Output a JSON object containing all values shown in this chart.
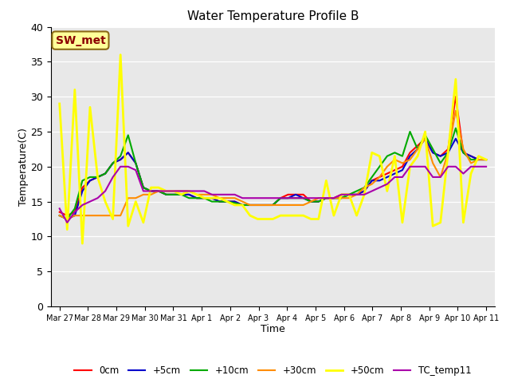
{
  "title": "Water Temperature Profile B",
  "xlabel": "Time",
  "ylabel": "Temperature(C)",
  "ylim": [
    0,
    40
  ],
  "annotation_text": "SW_met",
  "annotation_color": "#8B0000",
  "annotation_bg": "#FFFF99",
  "bg_color": "#E8E8E8",
  "legend_entries": [
    {
      "label": "0cm",
      "color": "#FF0000",
      "lw": 1.5
    },
    {
      "label": "+5cm",
      "color": "#0000CC",
      "lw": 1.5
    },
    {
      "label": "+10cm",
      "color": "#00AA00",
      "lw": 1.5
    },
    {
      "label": "+30cm",
      "color": "#FF8C00",
      "lw": 1.5
    },
    {
      "label": "+50cm",
      "color": "#FFFF00",
      "lw": 2.0
    },
    {
      "label": "TC_temp11",
      "color": "#AA00AA",
      "lw": 1.5
    }
  ],
  "tick_labels": [
    "Mar 27",
    "Mar 28",
    "Mar 29",
    "Mar 30",
    "Mar 31",
    "Apr 1",
    "Apr 2",
    "Apr 3",
    "Apr 4",
    "Apr 5",
    "Apr 6",
    "Apr 7",
    "Apr 8",
    "Apr 9",
    "Apr 10",
    "Apr 11"
  ],
  "series": {
    "0cm": [
      13.5,
      13.0,
      13.5,
      17.0,
      18.0,
      18.5,
      19.0,
      20.5,
      21.0,
      22.0,
      20.5,
      17.0,
      16.5,
      16.5,
      16.0,
      16.0,
      16.0,
      16.0,
      15.5,
      15.5,
      15.5,
      15.0,
      15.0,
      15.0,
      14.5,
      14.5,
      14.5,
      14.5,
      14.5,
      15.5,
      16.0,
      16.0,
      16.0,
      15.0,
      15.0,
      15.5,
      15.5,
      16.0,
      16.0,
      16.0,
      16.5,
      18.0,
      18.5,
      19.0,
      19.5,
      20.0,
      22.0,
      23.0,
      24.0,
      22.0,
      21.5,
      22.5,
      30.0,
      22.0,
      21.5,
      21.0,
      21.0
    ],
    "+5cm": [
      13.0,
      12.5,
      13.0,
      16.5,
      18.0,
      18.5,
      19.0,
      20.5,
      21.0,
      22.0,
      20.5,
      17.0,
      16.5,
      16.5,
      16.0,
      16.0,
      16.0,
      16.0,
      15.5,
      15.5,
      15.5,
      15.0,
      15.0,
      15.0,
      14.5,
      14.5,
      14.5,
      14.5,
      14.5,
      15.5,
      15.5,
      16.0,
      15.5,
      15.0,
      15.0,
      15.5,
      15.5,
      15.5,
      16.0,
      16.0,
      16.5,
      18.0,
      18.0,
      18.5,
      19.0,
      19.5,
      21.5,
      22.5,
      24.0,
      22.0,
      21.5,
      22.0,
      24.0,
      22.0,
      21.5,
      21.0,
      21.0
    ],
    "+10cm": [
      13.0,
      12.5,
      14.0,
      18.0,
      18.5,
      18.5,
      19.0,
      20.5,
      21.5,
      24.5,
      20.5,
      17.0,
      16.5,
      16.5,
      16.0,
      16.0,
      16.0,
      15.5,
      15.5,
      15.5,
      15.0,
      15.0,
      15.0,
      14.8,
      14.5,
      14.5,
      14.5,
      14.5,
      14.5,
      15.5,
      15.5,
      15.5,
      15.5,
      15.0,
      15.0,
      15.5,
      15.5,
      15.5,
      16.0,
      16.5,
      17.0,
      18.5,
      20.0,
      21.5,
      22.0,
      21.5,
      25.0,
      22.5,
      24.5,
      22.5,
      20.5,
      22.0,
      25.5,
      22.0,
      21.0,
      21.0,
      21.0
    ],
    "+30cm": [
      13.0,
      12.5,
      13.0,
      13.0,
      13.0,
      13.0,
      13.0,
      13.0,
      13.0,
      15.5,
      15.5,
      16.0,
      16.0,
      16.5,
      16.5,
      16.5,
      16.5,
      16.5,
      16.0,
      16.0,
      16.0,
      15.5,
      15.5,
      15.5,
      15.0,
      14.5,
      14.5,
      14.5,
      14.5,
      14.5,
      14.5,
      14.5,
      14.5,
      15.0,
      15.5,
      15.5,
      15.5,
      15.5,
      15.5,
      16.0,
      17.0,
      17.5,
      18.5,
      20.0,
      21.0,
      20.5,
      21.0,
      22.5,
      24.0,
      20.5,
      18.5,
      22.0,
      28.0,
      22.5,
      20.5,
      21.0,
      21.0
    ],
    "+50cm": [
      29.0,
      11.0,
      31.0,
      9.0,
      28.5,
      18.5,
      15.0,
      12.5,
      36.0,
      11.5,
      15.0,
      12.0,
      17.0,
      17.0,
      16.5,
      16.5,
      16.0,
      16.5,
      16.0,
      15.5,
      15.5,
      15.5,
      15.0,
      14.5,
      14.5,
      13.0,
      12.5,
      12.5,
      12.5,
      13.0,
      13.0,
      13.0,
      13.0,
      12.5,
      12.5,
      18.0,
      13.0,
      16.0,
      16.0,
      13.0,
      16.0,
      22.0,
      21.5,
      16.5,
      21.5,
      12.0,
      20.0,
      21.5,
      25.0,
      11.5,
      12.0,
      22.0,
      32.5,
      12.0,
      19.0,
      21.5,
      21.0
    ],
    "TC_temp11": [
      14.0,
      12.0,
      13.5,
      14.5,
      15.0,
      15.5,
      16.5,
      18.5,
      20.0,
      20.0,
      19.5,
      16.5,
      16.5,
      16.5,
      16.5,
      16.5,
      16.5,
      16.5,
      16.5,
      16.5,
      16.0,
      16.0,
      16.0,
      16.0,
      15.5,
      15.5,
      15.5,
      15.5,
      15.5,
      15.5,
      15.5,
      15.5,
      15.5,
      15.5,
      15.5,
      15.5,
      15.5,
      16.0,
      16.0,
      16.0,
      16.0,
      16.5,
      17.0,
      17.5,
      18.5,
      18.5,
      20.0,
      20.0,
      20.0,
      18.5,
      18.5,
      20.0,
      20.0,
      19.0,
      20.0,
      20.0,
      20.0
    ]
  }
}
